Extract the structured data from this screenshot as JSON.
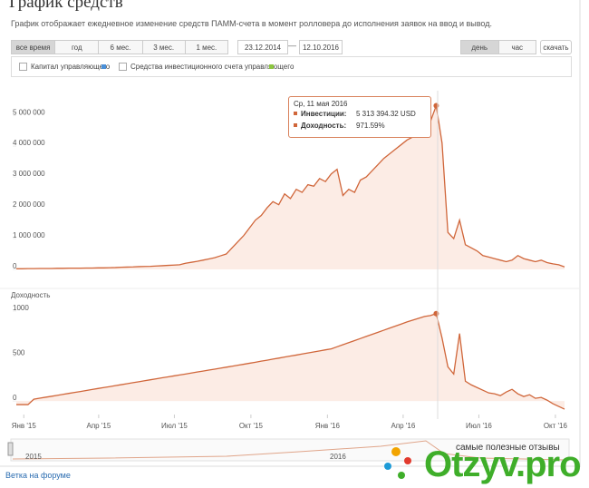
{
  "header": {
    "title": "График средств",
    "description": "График отображает ежедневное изменение средств ПАММ-счета в момент ролловера до исполнения заявок на ввод и вывод."
  },
  "controls": {
    "periods": [
      "все время",
      "год",
      "6 мес.",
      "3 мес.",
      "1 мес."
    ],
    "date_from": "23.12.2014",
    "separator": "—",
    "date_to": "12.10.2016",
    "granularity": [
      "день",
      "час"
    ],
    "download": "скачать"
  },
  "legend": [
    {
      "label": "Капитал управляющего",
      "color": "#4a90d9"
    },
    {
      "label": "Средства инвестиционного счета управляющего",
      "color": "#8cc63f"
    }
  ],
  "chart_data": [
    {
      "type": "area",
      "color": "#d0663a",
      "fill": "#fcece5",
      "xlim": [
        "2014-12-23",
        "2016-10-12"
      ],
      "ylim": [
        0,
        5800000
      ],
      "yticks": [
        0,
        {
          "value": 1000000,
          "label": "1 000 000"
        },
        {
          "value": 2000000,
          "label": "2 000 000"
        },
        {
          "value": 3000000,
          "label": "3 000 000"
        },
        {
          "value": 4000000,
          "label": "4 000 000"
        },
        {
          "value": 5000000,
          "label": "5 000 000"
        }
      ],
      "values": [
        20000,
        20000,
        25000,
        25000,
        30000,
        30000,
        30000,
        35000,
        35000,
        40000,
        40000,
        40000,
        45000,
        45000,
        50000,
        50000,
        55000,
        60000,
        70000,
        75000,
        80000,
        90000,
        95000,
        100000,
        110000,
        120000,
        130000,
        140000,
        150000,
        200000,
        230000,
        260000,
        300000,
        340000,
        380000,
        440000,
        500000,
        700000,
        900000,
        1100000,
        1350000,
        1600000,
        1750000,
        2000000,
        2200000,
        2100000,
        2450000,
        2300000,
        2600000,
        2500000,
        2750000,
        2700000,
        2950000,
        2850000,
        3100000,
        3250000,
        2400000,
        2600000,
        2500000,
        2900000,
        3000000,
        3200000,
        3400000,
        3600000,
        3750000,
        3900000,
        4050000,
        4200000,
        4300000,
        4450000,
        4600000,
        4800000,
        5313394.32,
        4100000,
        1200000,
        1000000,
        1600000,
        800000,
        700000,
        600000,
        450000,
        400000,
        350000,
        300000,
        250000,
        300000,
        450000,
        350000,
        300000,
        250000,
        300000,
        220000,
        180000,
        150000,
        80000
      ]
    },
    {
      "type": "area",
      "ylabel": "Доходность",
      "color": "#d0663a",
      "fill": "#fcece5",
      "xlim": [
        "2014-12-23",
        "2016-10-12"
      ],
      "xticks": [
        {
          "value": "2015-01-01",
          "label": "Янв '15"
        },
        {
          "value": "2015-04-01",
          "label": "Апр '15"
        },
        {
          "value": "2015-07-01",
          "label": "Июл '15"
        },
        {
          "value": "2015-10-01",
          "label": "Окт '15"
        },
        {
          "value": "2016-01-01",
          "label": "Янв '16"
        },
        {
          "value": "2016-04-01",
          "label": "Апр '16"
        },
        {
          "value": "2016-07-01",
          "label": "Июл '16"
        },
        {
          "value": "2016-10-01",
          "label": "Окт '16"
        }
      ],
      "ylim": [
        -130,
        1080
      ],
      "yticks": [
        0,
        500,
        1000
      ],
      "values": [
        -40,
        -40,
        -40,
        20,
        31,
        42,
        52,
        63,
        74,
        85,
        96,
        106,
        117,
        128,
        139,
        150,
        160,
        171,
        182,
        193,
        204,
        214,
        225,
        236,
        247,
        258,
        268,
        279,
        290,
        300,
        311,
        322,
        333,
        344,
        354,
        365,
        376,
        387,
        398,
        409,
        420,
        431,
        443,
        454,
        466,
        477,
        489,
        500,
        511,
        523,
        534,
        546,
        557,
        569,
        580,
        603,
        626,
        649,
        672,
        695,
        718,
        741,
        764,
        787,
        810,
        833,
        856,
        880,
        900,
        920,
        940,
        950,
        971.59,
        700,
        380,
        300,
        750,
        220,
        180,
        150,
        120,
        90,
        80,
        60,
        100,
        130,
        80,
        50,
        70,
        30,
        40,
        10,
        -30,
        -60,
        -90
      ]
    }
  ],
  "tooltip": {
    "date": "Ср, 11 мая 2016",
    "rows": [
      {
        "label": "Инвестиции:",
        "value": "5 313 394.32 USD"
      },
      {
        "label": "Доходность:",
        "value": "971.59%"
      }
    ]
  },
  "navigator": {
    "labels": [
      "2015",
      "2016"
    ]
  },
  "footer": {
    "link": "Ветка на форуме"
  },
  "watermark": {
    "tagline": "самые полезные отзывы",
    "brand": "Otzyv.pro"
  }
}
